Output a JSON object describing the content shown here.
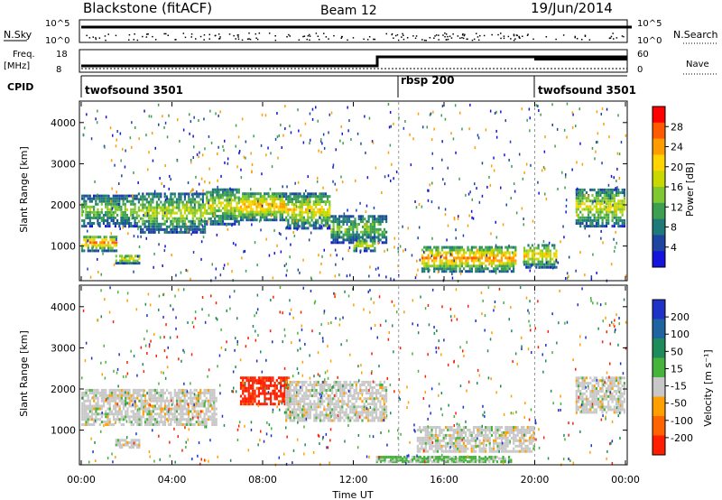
{
  "header": {
    "station": "Blackstone (fitACF)",
    "beam": "Beam 12",
    "date": "19/Jun/2014"
  },
  "top_panels": {
    "nsky": {
      "left_label": "N.Sky",
      "left_ticks": [
        "10^5",
        "10^0"
      ],
      "right_ticks": [
        "10^5",
        "10^0"
      ],
      "right_label": "N.Search"
    },
    "freq": {
      "left_label_1": "Freq.",
      "left_label_2": "[MHz]",
      "left_ticks": [
        "18",
        "8"
      ],
      "right_ticks": [
        "60",
        "0"
      ],
      "right_label": "Nave"
    },
    "cpid": {
      "label": "CPID",
      "segments": [
        {
          "name": "twofsound 3501",
          "start_hour": 0,
          "end_hour": 14
        },
        {
          "name": "rbsp 200",
          "start_hour": 14,
          "end_hour": 20
        },
        {
          "name": "twofsound 3501",
          "start_hour": 20,
          "end_hour": 24
        }
      ]
    }
  },
  "chart_data": [
    {
      "type": "heatmap",
      "title": "",
      "xlabel": "",
      "ylabel": "Slant Range [km]",
      "xlim": [
        0,
        24
      ],
      "ylim": [
        180,
        4500
      ],
      "yticks": [
        1000,
        2000,
        3000,
        4000
      ],
      "colorbar": {
        "label": "Power [dB]",
        "ticks": [
          28,
          24,
          20,
          16,
          12,
          8,
          4
        ],
        "colors": [
          "#ff0000",
          "#ff5a00",
          "#ff9c00",
          "#ffd400",
          "#c8d800",
          "#7fc832",
          "#3ca050",
          "#1e7a78",
          "#1e46a0",
          "#1414dc"
        ]
      },
      "regions": [
        {
          "h0": 0.0,
          "h1": 1.6,
          "r0": 850,
          "r1": 1250,
          "level": 0.85
        },
        {
          "h0": 1.5,
          "h1": 2.6,
          "r0": 550,
          "r1": 780,
          "level": 0.65
        },
        {
          "h0": 0.0,
          "h1": 2.5,
          "r0": 1450,
          "r1": 2250,
          "level": 0.45
        },
        {
          "h0": 2.5,
          "h1": 5.5,
          "r0": 1300,
          "r1": 2300,
          "level": 0.55
        },
        {
          "h0": 5.5,
          "h1": 7.0,
          "r0": 1500,
          "r1": 2400,
          "level": 0.6
        },
        {
          "h0": 7.0,
          "h1": 9.0,
          "r0": 1600,
          "r1": 2300,
          "level": 0.8
        },
        {
          "h0": 9.0,
          "h1": 11.0,
          "r0": 1400,
          "r1": 2300,
          "level": 0.65
        },
        {
          "h0": 11.0,
          "h1": 13.5,
          "r0": 1050,
          "r1": 1750,
          "level": 0.45
        },
        {
          "h0": 12.0,
          "h1": 13.0,
          "r0": 850,
          "r1": 1150,
          "level": 0.6
        },
        {
          "h0": 15.0,
          "h1": 19.2,
          "r0": 350,
          "r1": 1000,
          "level": 0.82
        },
        {
          "h0": 19.5,
          "h1": 21.0,
          "r0": 450,
          "r1": 1050,
          "level": 0.7
        },
        {
          "h0": 21.8,
          "h1": 24.0,
          "r0": 1450,
          "r1": 2400,
          "level": 0.6
        }
      ]
    },
    {
      "type": "heatmap",
      "title": "",
      "xlabel": "Time UT",
      "ylabel": "Slant Range [km]",
      "xlim": [
        0,
        24
      ],
      "ylim": [
        180,
        4500
      ],
      "yticks": [
        1000,
        2000,
        3000,
        4000
      ],
      "xticks": [
        "00:00",
        "04:00",
        "08:00",
        "12:00",
        "16:00",
        "20:00",
        "00:00"
      ],
      "colorbar": {
        "label": "Velocity [m s⁻¹]",
        "ticks": [
          "200",
          "100",
          "50",
          "15",
          "-15",
          "-50",
          "-100",
          "-200"
        ],
        "colors": [
          "#1e32c8",
          "#1e64a0",
          "#1e8c5a",
          "#46b43c",
          "#c8c8c8",
          "#ffa000",
          "#ff6400",
          "#ff1e00"
        ]
      },
      "regions": [
        {
          "h0": 0.0,
          "h1": 6.0,
          "r0": 1100,
          "r1": 2000,
          "level": "gray"
        },
        {
          "h0": 1.5,
          "h1": 2.6,
          "r0": 550,
          "r1": 780,
          "level": "gray"
        },
        {
          "h0": 7.0,
          "h1": 9.2,
          "r0": 1600,
          "r1": 2300,
          "level": "red"
        },
        {
          "h0": 9.0,
          "h1": 13.5,
          "r0": 1200,
          "r1": 2200,
          "level": "gray"
        },
        {
          "h0": 14.8,
          "h1": 20.0,
          "r0": 450,
          "r1": 1100,
          "level": "gray"
        },
        {
          "h0": 21.8,
          "h1": 24.0,
          "r0": 1400,
          "r1": 2300,
          "level": "gray"
        },
        {
          "h0": 13.0,
          "h1": 19.0,
          "r0": 200,
          "r1": 350,
          "level": "green"
        }
      ]
    }
  ]
}
